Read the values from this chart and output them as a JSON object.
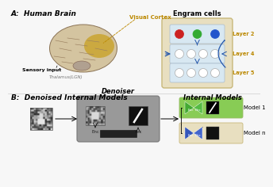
{
  "bg_color": "#f7f7f7",
  "section_A_label": "A:  Human Brain",
  "section_B_label": "B:  Denoised Internal Models",
  "visual_cortex_label": "Visual Cortex",
  "engram_label": "Engram cells",
  "sensory_label": "Sensory input",
  "thalamus_label": "Thalamus(LGN)",
  "layer2_label": "Layer 2",
  "layer4_label": "Layer 4",
  "layer5_label": "Layer 5",
  "denoiser_label": "Denoiser",
  "internal_models_label": "Internal Models",
  "model1_label": "Model 1",
  "modeln_label": "Model n",
  "engram_bg": "#e8dfc0",
  "engram_border": "#c8b87a",
  "layer_bg": "#d8e8f2",
  "layer_border": "#aabbcc",
  "arrow_color": "#2255aa",
  "dot_red": "#cc2222",
  "dot_green": "#33aa33",
  "dot_blue": "#2255cc",
  "denoiser_bg": "#999999",
  "model1_outer_bg": "#88cc55",
  "modeln_outer_bg": "#e8dfc0",
  "enc_green": "#44aa33",
  "dec_green": "#55bb44",
  "enc_blue": "#3355bb",
  "dec_blue": "#4466cc",
  "visual_cortex_color": "#bb8800",
  "layer_label_color": "#bb8800",
  "brain_color": "#d4c4a0",
  "brain_edge": "#8b7355",
  "vc_color": "#c8a020"
}
